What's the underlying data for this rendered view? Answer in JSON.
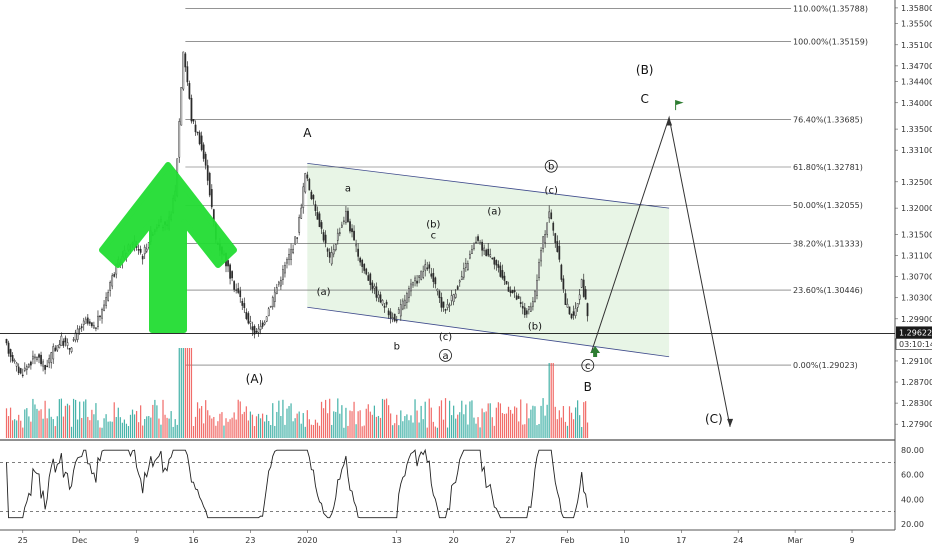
{
  "chart_data": {
    "type": "candlestick",
    "instrument_price_axis": {
      "ticks": [
        "1.35800",
        "1.35500",
        "1.35100",
        "1.34700",
        "1.34400",
        "1.34000",
        "1.33500",
        "1.33100",
        "1.32500",
        "1.32000",
        "1.31500",
        "1.31100",
        "1.30700",
        "1.30300",
        "1.29900",
        "1.29500",
        "1.29100",
        "1.28700",
        "1.28300",
        "1.27900"
      ],
      "tick_values": [
        1.358,
        1.355,
        1.351,
        1.347,
        1.344,
        1.34,
        1.335,
        1.331,
        1.325,
        1.32,
        1.315,
        1.311,
        1.307,
        1.303,
        1.299,
        1.295,
        1.291,
        1.287,
        1.283,
        1.279
      ],
      "ylim": [
        1.276,
        1.3595
      ],
      "current_price": "1.29622",
      "countdown": "03:10:14"
    },
    "time_axis": {
      "labels": [
        "25",
        "Dec",
        "9",
        "16",
        "23",
        "2020",
        "13",
        "20",
        "27",
        "Feb",
        "10",
        "17",
        "24",
        "Mar",
        "9"
      ],
      "positions": [
        1,
        8,
        15,
        22,
        29,
        36,
        47,
        54,
        61,
        68,
        75,
        82,
        89,
        96,
        103
      ]
    },
    "fib_levels": [
      {
        "label": "110.00%(1.35788)",
        "value": 1.35788
      },
      {
        "label": "100.00%(1.35159)",
        "value": 1.35159
      },
      {
        "label": "76.40%(1.33685)",
        "value": 1.33685
      },
      {
        "label": "61.80%(1.32781)",
        "value": 1.32781
      },
      {
        "label": "50.00%(1.32055)",
        "value": 1.32055
      },
      {
        "label": "38.20%(1.31333)",
        "value": 1.31333
      },
      {
        "label": "23.60%(1.30446)",
        "value": 1.30446
      },
      {
        "label": "0.00%(1.29023)",
        "value": 1.29023
      }
    ],
    "wave_labels": [
      {
        "text": "A",
        "t": 36,
        "p": 1.3335,
        "size": "big"
      },
      {
        "text": "a",
        "t": 41,
        "p": 1.3232,
        "size": "small"
      },
      {
        "text": "(a)",
        "t": 38,
        "p": 1.3035,
        "size": "small"
      },
      {
        "text": "b",
        "t": 47,
        "p": 1.2932,
        "size": "small"
      },
      {
        "text": "(b)",
        "t": 51.5,
        "p": 1.3163,
        "size": "small"
      },
      {
        "text": "c",
        "t": 51.5,
        "p": 1.3142,
        "size": "small"
      },
      {
        "text": "(c)",
        "t": 53,
        "p": 1.295,
        "size": "small"
      },
      {
        "text": "a",
        "t": 53,
        "p": 1.2914,
        "size": "circle"
      },
      {
        "text": "(a)",
        "t": 59,
        "p": 1.3188,
        "size": "small"
      },
      {
        "text": "(b)",
        "t": 64,
        "p": 1.297,
        "size": "small"
      },
      {
        "text": "b",
        "t": 66,
        "p": 1.3273,
        "size": "circle"
      },
      {
        "text": "(c)",
        "t": 66,
        "p": 1.3228,
        "size": "small"
      },
      {
        "text": "c",
        "t": 70.5,
        "p": 1.2895,
        "size": "circle"
      },
      {
        "text": "B",
        "t": 70.5,
        "p": 1.2853,
        "size": "big"
      },
      {
        "text": "(A)",
        "t": 29.5,
        "p": 1.2868,
        "size": "big"
      },
      {
        "text": "(B)",
        "t": 77.5,
        "p": 1.3455,
        "size": "big"
      },
      {
        "text": "C",
        "t": 77.5,
        "p": 1.34,
        "size": "big"
      },
      {
        "text": "(C)",
        "t": 86,
        "p": 1.2792,
        "size": "big"
      }
    ],
    "rsi": {
      "ticks": [
        "80.00",
        "60.00",
        "40.00",
        "20.00"
      ],
      "tick_values": [
        80,
        60,
        40,
        20
      ],
      "upper": 70,
      "lower": 30
    }
  }
}
